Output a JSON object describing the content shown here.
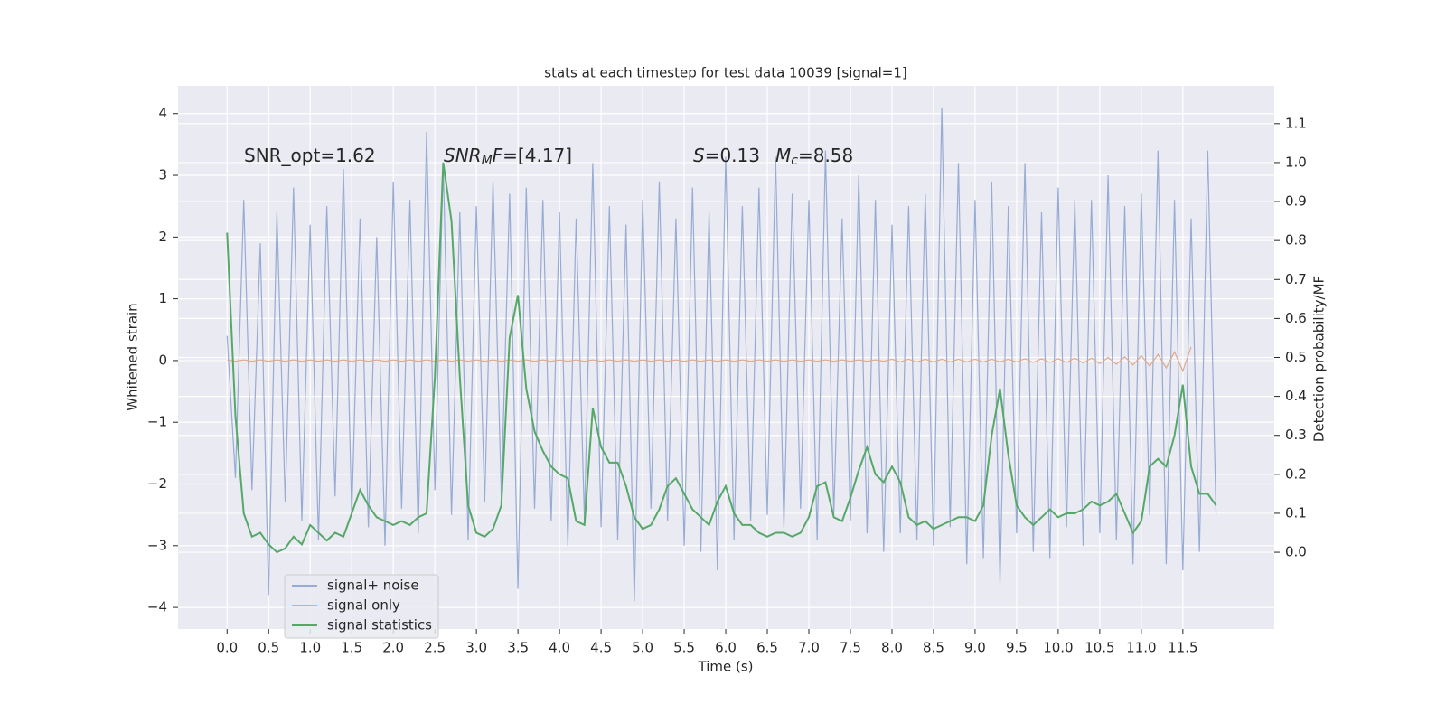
{
  "chart_data": {
    "type": "line",
    "title": "stats at each timestep for test data 10039 [signal=1]",
    "xlabel": "Time (s)",
    "ylabel": "Whitened strain",
    "y2label": "Detection probability/MF",
    "annotations": [
      [
        "SNR_opt=1.62"
      ],
      [
        "SNR",
        "M",
        "F",
        "=[4.17]"
      ],
      [
        "S",
        "=0.13"
      ],
      [
        "M",
        "c",
        "=8.58"
      ]
    ],
    "grid": true,
    "legend": "lower left",
    "xlim": [
      -0.59,
      12.6
    ],
    "ylim": [
      -4.35,
      4.45
    ],
    "y2lim": [
      -0.197,
      1.197
    ],
    "xticks": [
      {
        "value": 0,
        "label": "0.0"
      },
      0.5,
      {
        "value": 1,
        "label": "1.0"
      },
      1.5,
      {
        "value": 2,
        "label": "2.0"
      },
      2.5,
      {
        "value": 3,
        "label": "3.0"
      },
      3.5,
      {
        "value": 4,
        "label": "4.0"
      },
      4.5,
      {
        "value": 5,
        "label": "5.0"
      },
      5.5,
      {
        "value": 6,
        "label": "6.0"
      },
      6.5,
      {
        "value": 7,
        "label": "7.0"
      },
      7.5,
      {
        "value": 8,
        "label": "8.0"
      },
      8.5,
      {
        "value": 9,
        "label": "9.0"
      },
      9.5,
      {
        "value": 10,
        "label": "10.0"
      },
      10.5,
      {
        "value": 11,
        "label": "11.0"
      },
      11.5
    ],
    "yticks": [
      {
        "value": -4,
        "label": "−4"
      },
      {
        "value": -3,
        "label": "−3"
      },
      {
        "value": -2,
        "label": "−2"
      },
      {
        "value": -1,
        "label": "−1"
      },
      0,
      1,
      2,
      3,
      4
    ],
    "y2ticks": [
      {
        "value": 0,
        "label": "0.0"
      },
      0.1,
      0.2,
      0.3,
      0.4,
      0.5,
      0.6,
      0.7,
      0.8,
      0.9,
      {
        "value": 1,
        "label": "1.0"
      },
      1.1
    ],
    "x": [
      0,
      0.1,
      0.2,
      0.3,
      0.4,
      0.5,
      0.6,
      0.7,
      0.8,
      0.9,
      1,
      1.1,
      1.2,
      1.3,
      1.4,
      1.5,
      1.6,
      1.7,
      1.8,
      1.9,
      2,
      2.1,
      2.2,
      2.3,
      2.4,
      2.5,
      2.6,
      2.7,
      2.8,
      2.9,
      3,
      3.1,
      3.2,
      3.3,
      3.4,
      3.5,
      3.6,
      3.7,
      3.8,
      3.9,
      4,
      4.1,
      4.2,
      4.3,
      4.4,
      4.5,
      4.6,
      4.7,
      4.8,
      4.9,
      5,
      5.1,
      5.2,
      5.3,
      5.4,
      5.5,
      5.6,
      5.7,
      5.8,
      5.9,
      6,
      6.1,
      6.2,
      6.3,
      6.4,
      6.5,
      6.6,
      6.7,
      6.8,
      6.9,
      7,
      7.1,
      7.2,
      7.3,
      7.4,
      7.5,
      7.6,
      7.7,
      7.8,
      7.9,
      8,
      8.1,
      8.2,
      8.3,
      8.4,
      8.5,
      8.6,
      8.7,
      8.8,
      8.9,
      9,
      9.1,
      9.2,
      9.3,
      9.4,
      9.5,
      9.6,
      9.7,
      9.8,
      9.9,
      10,
      10.1,
      10.2,
      10.3,
      10.4,
      10.5,
      10.6,
      10.7,
      10.8,
      10.9,
      11,
      11.1,
      11.2,
      11.3,
      11.4,
      11.5,
      11.6,
      11.7,
      11.8,
      11.9
    ],
    "series": [
      {
        "name": "signal+ noise",
        "color": "#97abd3",
        "axis": "y",
        "values": [
          0.4,
          -1.9,
          2.6,
          -2.1,
          1.9,
          -3.8,
          2.4,
          -2.3,
          2.8,
          -2.6,
          2.2,
          -2.9,
          2.5,
          -2.2,
          3.1,
          -2.5,
          2.3,
          -2.7,
          2.0,
          -3.0,
          2.9,
          -2.4,
          2.6,
          -2.8,
          3.7,
          -2.1,
          3.2,
          -2.5,
          2.4,
          -2.9,
          2.5,
          -2.3,
          2.9,
          -2.2,
          2.7,
          -3.7,
          2.8,
          -2.4,
          2.6,
          -2.6,
          2.4,
          -3.0,
          2.3,
          -2.6,
          3.2,
          -2.7,
          2.5,
          -2.9,
          2.2,
          -3.9,
          2.6,
          -2.4,
          2.9,
          -2.6,
          2.3,
          -3.0,
          2.8,
          -3.1,
          2.4,
          -3.4,
          3.3,
          -2.9,
          2.5,
          -2.6,
          2.8,
          -2.5,
          3.3,
          -2.7,
          2.7,
          -2.4,
          2.6,
          -2.9,
          3.4,
          -2.5,
          2.3,
          -2.6,
          3.0,
          -2.8,
          2.6,
          -3.1,
          2.2,
          -2.8,
          2.5,
          -2.9,
          2.7,
          -3.0,
          4.1,
          -2.7,
          3.2,
          -3.3,
          2.6,
          -3.2,
          2.9,
          -3.6,
          2.5,
          -2.8,
          3.2,
          -3.1,
          2.4,
          -3.2,
          2.8,
          -2.7,
          2.6,
          -3.0,
          2.6,
          -2.8,
          3.0,
          -2.9,
          2.5,
          -3.3,
          2.7,
          -2.5,
          3.4,
          -3.3,
          2.6,
          -3.4,
          2.3,
          -3.1,
          3.4,
          -2.5
        ]
      },
      {
        "name": "signal only",
        "color": "#e0a98c",
        "axis": "y",
        "values": [
          0.01,
          -0.01,
          0.01,
          -0.01,
          0.01,
          -0.01,
          0.01,
          -0.01,
          0.01,
          -0.01,
          0.01,
          -0.01,
          0.01,
          -0.01,
          0.01,
          -0.01,
          0.01,
          -0.01,
          0.01,
          -0.01,
          0.01,
          -0.01,
          0.01,
          -0.01,
          0.01,
          -0.01,
          0.01,
          -0.01,
          0.01,
          -0.01,
          0.01,
          -0.01,
          0.01,
          -0.01,
          0.01,
          -0.01,
          0.01,
          -0.01,
          0.01,
          -0.01,
          0.01,
          -0.01,
          0.01,
          -0.01,
          0.01,
          -0.01,
          0.01,
          -0.01,
          0.01,
          -0.01,
          0.01,
          -0.01,
          0.01,
          -0.01,
          0.01,
          -0.01,
          0.01,
          -0.01,
          0.01,
          -0.01,
          0.01,
          -0.01,
          0.01,
          -0.01,
          0.01,
          -0.01,
          0.01,
          -0.01,
          0.01,
          -0.01,
          0.01,
          -0.01,
          0.01,
          -0.01,
          0.01,
          -0.01,
          0.01,
          -0.01,
          0.01,
          -0.01,
          0.02,
          -0.02,
          0.02,
          -0.02,
          0.02,
          -0.02,
          0.02,
          -0.02,
          0.02,
          -0.02,
          0.02,
          -0.02,
          0.02,
          -0.02,
          0.02,
          -0.02,
          0.03,
          -0.03,
          0.03,
          -0.03,
          0.03,
          -0.03,
          0.04,
          -0.04,
          0.04,
          -0.05,
          0.05,
          -0.06,
          0.06,
          -0.07,
          0.08,
          -0.09,
          0.1,
          -0.12,
          0.14,
          -0.17,
          0.22,
          null,
          null,
          null
        ]
      },
      {
        "name": "signal statistics",
        "color": "#55a868",
        "axis": "y2",
        "values": [
          0.82,
          0.35,
          0.1,
          0.04,
          0.05,
          0.02,
          0.0,
          0.01,
          0.04,
          0.02,
          0.07,
          0.05,
          0.03,
          0.05,
          0.04,
          0.1,
          0.16,
          0.12,
          0.09,
          0.08,
          0.07,
          0.08,
          0.07,
          0.09,
          0.1,
          0.45,
          1.0,
          0.85,
          0.45,
          0.12,
          0.05,
          0.04,
          0.06,
          0.12,
          0.55,
          0.66,
          0.42,
          0.31,
          0.26,
          0.22,
          0.2,
          0.19,
          0.08,
          0.07,
          0.37,
          0.27,
          0.23,
          0.23,
          0.17,
          0.09,
          0.06,
          0.07,
          0.11,
          0.17,
          0.19,
          0.15,
          0.11,
          0.09,
          0.07,
          0.13,
          0.17,
          0.1,
          0.07,
          0.07,
          0.05,
          0.04,
          0.05,
          0.05,
          0.04,
          0.05,
          0.09,
          0.17,
          0.18,
          0.09,
          0.08,
          0.14,
          0.21,
          0.27,
          0.2,
          0.18,
          0.22,
          0.18,
          0.09,
          0.07,
          0.08,
          0.06,
          0.07,
          0.08,
          0.09,
          0.09,
          0.08,
          0.12,
          0.3,
          0.42,
          0.25,
          0.12,
          0.09,
          0.07,
          0.09,
          0.11,
          0.09,
          0.1,
          0.1,
          0.11,
          0.13,
          0.12,
          0.13,
          0.15,
          0.1,
          0.05,
          0.08,
          0.22,
          0.24,
          0.22,
          0.3,
          0.43,
          0.22,
          0.15,
          0.15,
          0.12
        ]
      }
    ]
  }
}
